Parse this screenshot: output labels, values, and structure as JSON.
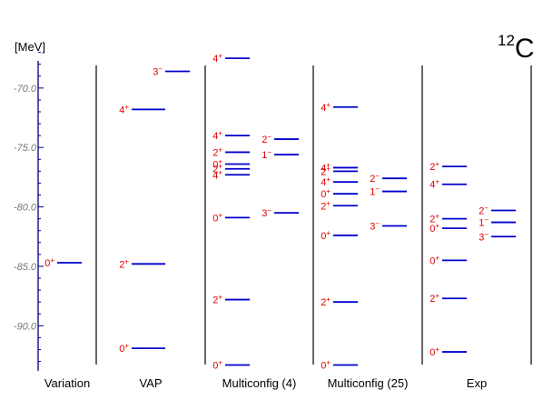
{
  "chart_data": {
    "type": "level-scheme",
    "title": "¹²C",
    "title_mass": "12",
    "title_element": "C",
    "ylabel": "[MeV]",
    "ylim": [
      -93.8,
      -66.8
    ],
    "yticks": [
      -70.0,
      -75.0,
      -80.0,
      -85.0,
      -90.0
    ],
    "ytick_labels": [
      "-70.0",
      "-75.0",
      "-80.0",
      "-85.0",
      "-90.0"
    ],
    "colors": {
      "level": "#0000cc",
      "label": "#e00000",
      "divider": "#555555",
      "axis": "#000080"
    },
    "columns": [
      {
        "label": "Variation",
        "levels": [
          {
            "energy": -84.7,
            "label": "0",
            "parity": "+",
            "sub": 0
          }
        ]
      },
      {
        "label": "VAP",
        "levels": [
          {
            "energy": -71.8,
            "label": "4",
            "parity": "+",
            "sub": 0
          },
          {
            "energy": -84.8,
            "label": "2",
            "parity": "+",
            "sub": 0
          },
          {
            "energy": -91.9,
            "label": "0",
            "parity": "+",
            "sub": 0
          },
          {
            "energy": -68.6,
            "label": "3",
            "parity": "−",
            "sub": 1
          }
        ]
      },
      {
        "label": "Multiconfig (4)",
        "levels": [
          {
            "energy": -67.5,
            "label": "4",
            "parity": "+",
            "sub": 0
          },
          {
            "energy": -74.0,
            "label": "4",
            "parity": "+",
            "sub": 0
          },
          {
            "energy": -75.4,
            "label": "2",
            "parity": "+",
            "sub": 0
          },
          {
            "energy": -76.4,
            "label": "0",
            "parity": "+",
            "sub": 0
          },
          {
            "energy": -76.8,
            "label": "2",
            "parity": "+",
            "sub": 0
          },
          {
            "energy": -77.3,
            "label": "4",
            "parity": "+",
            "sub": 0
          },
          {
            "energy": -80.9,
            "label": "0",
            "parity": "+",
            "sub": 0
          },
          {
            "energy": -87.8,
            "label": "2",
            "parity": "+",
            "sub": 0
          },
          {
            "energy": -93.3,
            "label": "0",
            "parity": "+",
            "sub": 0
          },
          {
            "energy": -74.3,
            "label": "2",
            "parity": "−",
            "sub": 1
          },
          {
            "energy": -75.6,
            "label": "1",
            "parity": "−",
            "sub": 1
          },
          {
            "energy": -80.5,
            "label": "3",
            "parity": "−",
            "sub": 1
          }
        ]
      },
      {
        "label": "Multiconfig (25)",
        "levels": [
          {
            "energy": -71.6,
            "label": "4",
            "parity": "+",
            "sub": 0
          },
          {
            "energy": -76.7,
            "label": "4",
            "parity": "+",
            "sub": 0
          },
          {
            "energy": -77.0,
            "label": "2",
            "parity": "+",
            "sub": 0
          },
          {
            "energy": -77.9,
            "label": "4",
            "parity": "+",
            "sub": 0
          },
          {
            "energy": -78.9,
            "label": "0",
            "parity": "+",
            "sub": 0
          },
          {
            "energy": -79.9,
            "label": "2",
            "parity": "+",
            "sub": 0
          },
          {
            "energy": -82.4,
            "label": "0",
            "parity": "+",
            "sub": 0
          },
          {
            "energy": -88.0,
            "label": "2",
            "parity": "+",
            "sub": 0
          },
          {
            "energy": -93.3,
            "label": "0",
            "parity": "+",
            "sub": 0
          },
          {
            "energy": -77.6,
            "label": "2",
            "parity": "−",
            "sub": 1
          },
          {
            "energy": -78.7,
            "label": "1",
            "parity": "−",
            "sub": 1
          },
          {
            "energy": -81.6,
            "label": "3",
            "parity": "−",
            "sub": 1
          }
        ]
      },
      {
        "label": "Exp",
        "levels": [
          {
            "energy": -76.6,
            "label": "2",
            "parity": "+",
            "sub": 0
          },
          {
            "energy": -78.1,
            "label": "4",
            "parity": "+",
            "sub": 0
          },
          {
            "energy": -81.0,
            "label": "2",
            "parity": "+",
            "sub": 0
          },
          {
            "energy": -81.8,
            "label": "0",
            "parity": "+",
            "sub": 0
          },
          {
            "energy": -84.5,
            "label": "0",
            "parity": "+",
            "sub": 0
          },
          {
            "energy": -87.7,
            "label": "2",
            "parity": "+",
            "sub": 0
          },
          {
            "energy": -92.2,
            "label": "0",
            "parity": "+",
            "sub": 0
          },
          {
            "energy": -80.3,
            "label": "2",
            "parity": "−",
            "sub": 1
          },
          {
            "energy": -81.3,
            "label": "1",
            "parity": "−",
            "sub": 1
          },
          {
            "energy": -82.5,
            "label": "3",
            "parity": "−",
            "sub": 1
          }
        ]
      }
    ]
  }
}
